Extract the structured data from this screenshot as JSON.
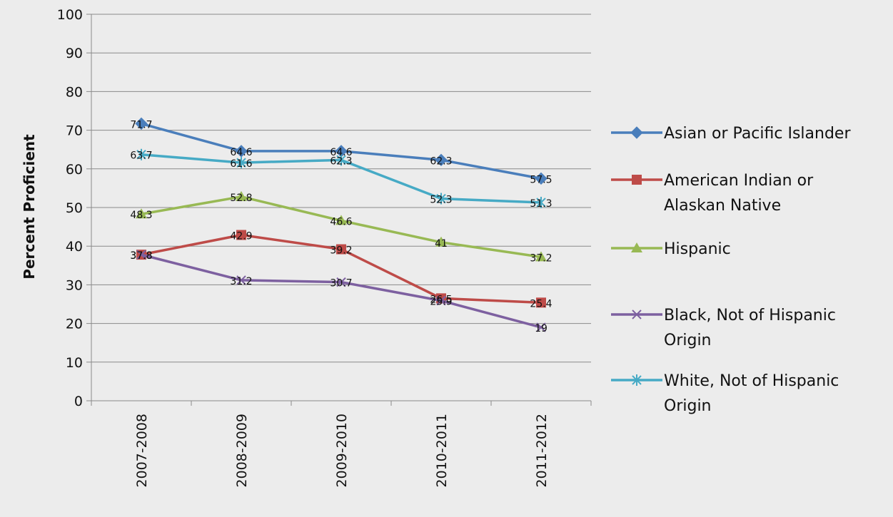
{
  "chart_data": {
    "type": "line",
    "title": "",
    "xlabel": "",
    "ylabel": "Percent Proficient",
    "ylim": [
      0,
      100
    ],
    "yticks": [
      0,
      10,
      20,
      30,
      40,
      50,
      60,
      70,
      80,
      90,
      100
    ],
    "grid": true,
    "legend_position": "right",
    "categories": [
      "2007-2008",
      "2008-2009",
      "2009-2010",
      "2010-2011",
      "2011-2012"
    ],
    "series": [
      {
        "name": "Asian or Pacific Islander",
        "legend_lines": [
          "Asian or Pacific Islander"
        ],
        "color": "#4A7EBB",
        "marker": "diamond",
        "values": [
          71.7,
          64.6,
          64.6,
          62.3,
          57.5
        ],
        "labels": [
          "71.7",
          "64.6",
          "64.6",
          "62.3",
          "57.5"
        ]
      },
      {
        "name": "American Indian or Alaskan Native",
        "legend_lines": [
          "American Indian or",
          "Alaskan Native"
        ],
        "color": "#BE4B48",
        "marker": "square",
        "values": [
          37.8,
          42.9,
          39.2,
          26.5,
          25.4
        ],
        "labels": [
          "37.8",
          "42.9",
          "39.2",
          "26.5",
          "25.4"
        ]
      },
      {
        "name": "Hispanic",
        "legend_lines": [
          "Hispanic"
        ],
        "color": "#98B954",
        "marker": "triangle",
        "values": [
          48.3,
          52.8,
          46.6,
          41,
          37.2
        ],
        "labels": [
          "48.3",
          "52.8",
          "46.6",
          "41",
          "37.2"
        ]
      },
      {
        "name": "Black, Not of Hispanic Origin",
        "legend_lines": [
          "Black, Not of Hispanic",
          "Origin"
        ],
        "color": "#7D60A0",
        "marker": "x",
        "values": [
          37.8,
          31.2,
          30.7,
          25.9,
          19
        ],
        "labels": [
          "37.8",
          "31.2",
          "30.7",
          "25.9",
          "19"
        ]
      },
      {
        "name": "White, Not of Hispanic Origin",
        "legend_lines": [
          "White, Not of Hispanic",
          "Origin"
        ],
        "color": "#46AAC5",
        "marker": "star",
        "values": [
          63.7,
          61.6,
          62.3,
          52.3,
          51.3
        ],
        "labels": [
          "63.7",
          "61.6",
          "62.3",
          "52.3",
          "51.3"
        ]
      }
    ]
  }
}
